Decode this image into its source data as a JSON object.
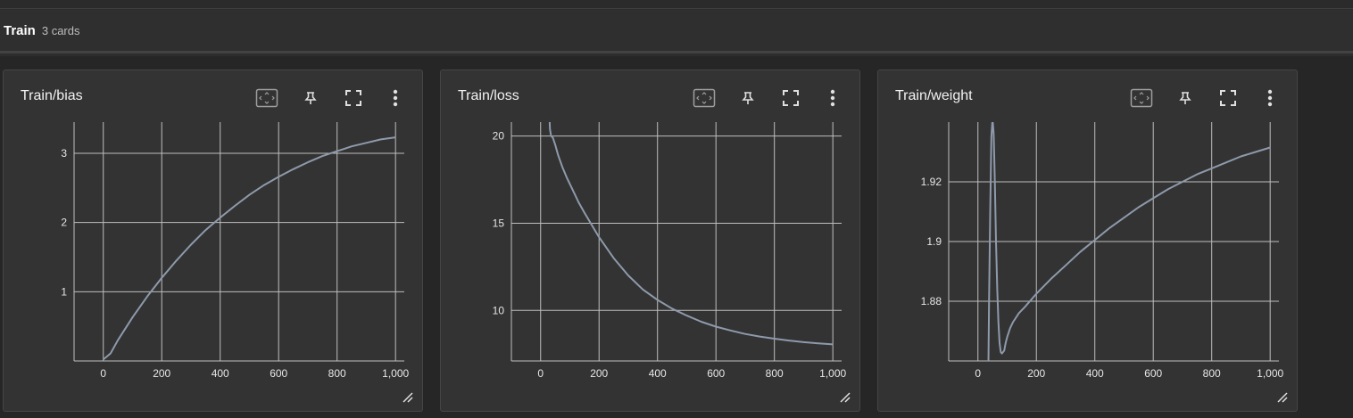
{
  "group": {
    "title": "Train",
    "count_label": "3 cards"
  },
  "colors": {
    "line": "#8e9aab",
    "grid": "#bfbfbf",
    "background": "#333333"
  },
  "icons": {
    "fit_domain": "fit-domain-icon",
    "pin": "pin-icon",
    "fullscreen": "fullscreen-icon",
    "more": "more-vert-icon",
    "resize": "resize-handle-icon"
  },
  "cards": [
    {
      "title": "Train/bias"
    },
    {
      "title": "Train/loss"
    },
    {
      "title": "Train/weight"
    }
  ],
  "chart_data": [
    {
      "type": "line",
      "title": "Train/bias",
      "xlim": [
        -100,
        1030
      ],
      "ylim": [
        0.0,
        3.45
      ],
      "x_ticks": [
        0,
        200,
        400,
        600,
        800,
        1000
      ],
      "x_tick_labels": [
        "0",
        "200",
        "400",
        "600",
        "800",
        "1,000"
      ],
      "y_ticks": [
        1,
        2,
        3
      ],
      "y_tick_labels": [
        "1",
        "2",
        "3"
      ],
      "grid": true,
      "series": [
        {
          "x": [
            0,
            25,
            50,
            100,
            150,
            200,
            250,
            300,
            350,
            400,
            450,
            500,
            550,
            600,
            650,
            700,
            750,
            800,
            850,
            900,
            950,
            1000
          ],
          "y": [
            0.02,
            0.11,
            0.3,
            0.63,
            0.93,
            1.2,
            1.45,
            1.68,
            1.89,
            2.07,
            2.24,
            2.4,
            2.54,
            2.66,
            2.77,
            2.87,
            2.96,
            3.03,
            3.1,
            3.15,
            3.2,
            3.23
          ]
        }
      ]
    },
    {
      "type": "line",
      "title": "Train/loss",
      "xlim": [
        -100,
        1030
      ],
      "ylim": [
        7.1,
        20.8
      ],
      "x_ticks": [
        0,
        200,
        400,
        600,
        800,
        1000
      ],
      "x_tick_labels": [
        "0",
        "200",
        "400",
        "600",
        "800",
        "1,000"
      ],
      "y_ticks": [
        10,
        15,
        20
      ],
      "y_tick_labels": [
        "10",
        "15",
        "20"
      ],
      "grid": true,
      "series": [
        {
          "x": [
            30,
            32,
            36,
            42,
            50,
            60,
            75,
            90,
            110,
            130,
            150,
            175,
            200,
            250,
            300,
            350,
            400,
            450,
            500,
            550,
            600,
            650,
            700,
            750,
            800,
            850,
            900,
            950,
            1000
          ],
          "y": [
            21.2,
            20.4,
            20.0,
            19.9,
            19.5,
            18.9,
            18.2,
            17.6,
            16.9,
            16.2,
            15.6,
            14.9,
            14.2,
            13.0,
            12.0,
            11.2,
            10.6,
            10.1,
            9.7,
            9.35,
            9.07,
            8.85,
            8.65,
            8.5,
            8.38,
            8.27,
            8.18,
            8.11,
            8.05
          ]
        }
      ]
    },
    {
      "type": "line",
      "title": "Train/weight",
      "xlim": [
        -100,
        1030
      ],
      "ylim": [
        1.86,
        1.94
      ],
      "x_ticks": [
        0,
        200,
        400,
        600,
        800,
        1000
      ],
      "x_tick_labels": [
        "0",
        "200",
        "400",
        "600",
        "800",
        "1,000"
      ],
      "y_ticks": [
        1.88,
        1.9,
        1.92
      ],
      "y_tick_labels": [
        "1.88",
        "1.9",
        "1.92"
      ],
      "grid": true,
      "series": [
        {
          "x": [
            35,
            38,
            42,
            46,
            50,
            54,
            58,
            62,
            66,
            70,
            74,
            78,
            82,
            86,
            90,
            95,
            100,
            110,
            120,
            140,
            160,
            200,
            250,
            300,
            350,
            400,
            450,
            500,
            550,
            600,
            650,
            700,
            750,
            800,
            850,
            900,
            950,
            1000
          ],
          "y": [
            1.85,
            1.88,
            1.91,
            1.935,
            1.941,
            1.936,
            1.92,
            1.9,
            1.884,
            1.873,
            1.866,
            1.863,
            1.8625,
            1.863,
            1.8635,
            1.866,
            1.868,
            1.871,
            1.873,
            1.876,
            1.878,
            1.8825,
            1.8875,
            1.892,
            1.8965,
            1.9005,
            1.9045,
            1.908,
            1.9115,
            1.9145,
            1.9175,
            1.92,
            1.9225,
            1.9245,
            1.9265,
            1.9285,
            1.93,
            1.9315
          ]
        }
      ]
    }
  ]
}
